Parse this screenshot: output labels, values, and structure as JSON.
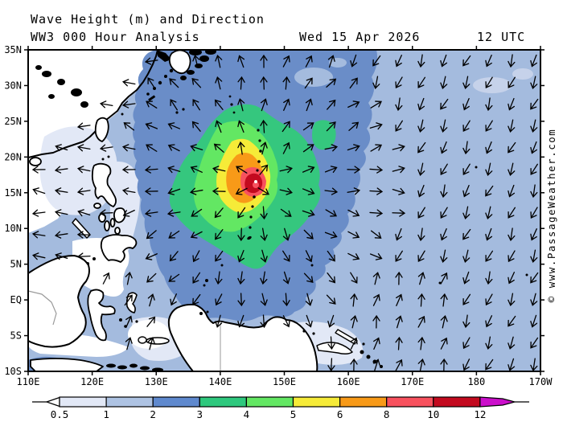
{
  "title": {
    "line1": "Wave Height (m) and Direction",
    "line2": "WW3 000 Hour Analysis",
    "date": "Wed 15 Apr 2026",
    "time": "12 UTC"
  },
  "copyright": "© www.PassageWeather.com",
  "map": {
    "lat_labels": [
      "35N",
      "30N",
      "25N",
      "20N",
      "15N",
      "10N",
      "5N",
      "EQ",
      "5S",
      "10S"
    ],
    "lat_values": [
      35,
      30,
      25,
      20,
      15,
      10,
      5,
      0,
      -5,
      -10
    ],
    "lon_labels": [
      "110E",
      "120E",
      "130E",
      "140E",
      "150E",
      "160E",
      "170E",
      "180",
      "170W"
    ],
    "lon_values": [
      110,
      120,
      130,
      140,
      150,
      160,
      170,
      180,
      190
    ],
    "lon_range": [
      110,
      190
    ],
    "lat_range": [
      35,
      -10
    ]
  },
  "colorbar": {
    "tick_labels": [
      "0.5",
      "1",
      "2",
      "3",
      "4",
      "5",
      "6",
      "8",
      "10",
      "12"
    ],
    "segment_colors": [
      "#FFFFFF",
      "#E2E8F6",
      "#AEC3E3",
      "#5F89CE",
      "#2EC87D",
      "#63E763",
      "#F6EB38",
      "#F89A18",
      "#F8515E",
      "#C30A1F",
      "#CB0FCB"
    ],
    "units": "m"
  },
  "chart_data": {
    "type": "heatmap",
    "title": "Wave Height (m) and Direction",
    "subtitle": "WW3 000 Hour Analysis",
    "valid": "Wed 15 Apr 2026 12 UTC",
    "units": "m",
    "legend_values": [
      0.5,
      1,
      2,
      3,
      4,
      5,
      6,
      8,
      10,
      12
    ],
    "storm": {
      "center_lat": "16.5N",
      "center_lon": "145.5E",
      "peak_wave_height_m": "10-12",
      "rings_m": [
        "3-4",
        "4-5",
        "5-6",
        "6-8",
        "8-10",
        "10-12"
      ],
      "pattern": "wave arrows radiate outward from storm center near the Mariana Islands"
    },
    "background_field": {
      "open_pacific_east": "1-2 m, arrows south to southwest",
      "north_central_pacific": "2-3 m",
      "coastal_seas_west": "0-1 m (South China Sea, Yellow Sea, Indonesian seas)",
      "south_of_java": "2-3 m"
    },
    "arrow_grid_spacing_px": 28
  }
}
